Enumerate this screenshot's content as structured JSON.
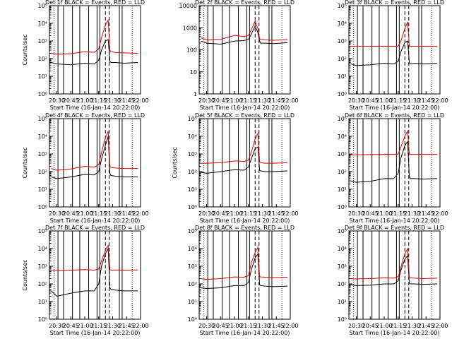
{
  "figure": {
    "background": "#ffffff",
    "colors": {
      "events": "#000000",
      "lld": "#dd0000",
      "axes": "#000000"
    }
  },
  "chart_data": [
    {
      "type": "line",
      "title": "Det 1f  BLACK = Events, RED = LLD",
      "xlabel": "Start Time (16-Jan-14 20:22:00)",
      "ylabel": "Counts/sec",
      "xticks": [
        "20:30",
        "20:45",
        "21:00",
        "21:15",
        "21:30",
        "21:45",
        "22:00"
      ],
      "yscale": "log",
      "ylim": [
        1,
        100000
      ],
      "yticklabels": [
        "10⁰",
        "10¹",
        "10²",
        "10³",
        "10⁴",
        "10⁵"
      ],
      "series": [
        {
          "color": "#000000",
          "x": [
            20.4,
            20.5,
            20.75,
            21.0,
            21.17,
            21.25,
            21.3,
            21.37,
            21.42,
            21.45,
            21.47,
            21.55,
            21.7,
            21.95
          ],
          "y": [
            60,
            50,
            45,
            55,
            50,
            80,
            300,
            1000,
            1200,
            70,
            60,
            60,
            55,
            60
          ]
        },
        {
          "color": "#dd0000",
          "x": [
            20.4,
            20.5,
            20.75,
            21.0,
            21.17,
            21.25,
            21.3,
            21.37,
            21.42,
            21.45,
            21.47,
            21.55,
            21.7,
            21.95
          ],
          "y": [
            200,
            180,
            190,
            250,
            230,
            350,
            1500,
            8000,
            15000,
            300,
            250,
            220,
            210,
            200
          ]
        }
      ]
    },
    {
      "type": "line",
      "title": "Det 2f  BLACK = Events, RED = LLD",
      "xlabel": "Start Time (16-Jan-14 20:22:00)",
      "ylabel": "",
      "xticks": [
        "20:30",
        "20:45",
        "21:00",
        "21:15",
        "21:30",
        "21:45",
        "22:00"
      ],
      "yscale": "log",
      "ylim": [
        1,
        10000
      ],
      "yticklabels": [
        "1",
        "10",
        "100",
        "1000",
        "10000"
      ],
      "series": [
        {
          "color": "#000000",
          "x": [
            20.4,
            20.5,
            20.75,
            21.0,
            21.17,
            21.25,
            21.3,
            21.37,
            21.42,
            21.45,
            21.47,
            21.55,
            21.7,
            21.95
          ],
          "y": [
            250,
            200,
            180,
            250,
            260,
            300,
            500,
            1200,
            600,
            250,
            200,
            200,
            190,
            210
          ]
        },
        {
          "color": "#dd0000",
          "x": [
            20.4,
            20.5,
            20.75,
            21.0,
            21.17,
            21.25,
            21.3,
            21.37,
            21.42,
            21.45,
            21.47,
            21.55,
            21.7,
            21.95
          ],
          "y": [
            350,
            280,
            300,
            450,
            400,
            450,
            800,
            2000,
            900,
            320,
            300,
            280,
            270,
            290
          ]
        }
      ]
    },
    {
      "type": "line",
      "title": "Det 3f  BLACK = Events, RED = LLD",
      "xlabel": "Start Time (16-Jan-14 20:22:00)",
      "ylabel": "",
      "xticks": [
        "20:30",
        "20:45",
        "21:00",
        "21:15",
        "21:30",
        "21:45",
        "22:00"
      ],
      "yscale": "log",
      "ylim": [
        1,
        100000
      ],
      "yticklabels": [
        "10⁰",
        "10¹",
        "10²",
        "10³",
        "10⁴",
        "10⁵"
      ],
      "series": [
        {
          "color": "#000000",
          "x": [
            20.4,
            20.5,
            20.75,
            21.0,
            21.17,
            21.25,
            21.3,
            21.37,
            21.42,
            21.45,
            21.47,
            21.55,
            21.7,
            21.95
          ],
          "y": [
            50,
            40,
            45,
            55,
            50,
            70,
            250,
            800,
            1000,
            60,
            50,
            55,
            50,
            55
          ]
        },
        {
          "color": "#dd0000",
          "x": [
            20.4,
            20.5,
            20.75,
            21.0,
            21.17,
            21.25,
            21.3,
            21.37,
            21.42,
            21.45,
            21.47,
            21.55,
            21.7,
            21.95
          ],
          "y": [
            500,
            500,
            500,
            500,
            500,
            520,
            1000,
            5000,
            12000,
            500,
            500,
            500,
            500,
            500
          ]
        }
      ]
    },
    {
      "type": "line",
      "title": "Det 4f  BLACK = Events, RED = LLD",
      "xlabel": "Start Time (16-Jan-14 20:22:00)",
      "ylabel": "Counts/sec",
      "xticks": [
        "20:30",
        "20:45",
        "21:00",
        "21:15",
        "21:30",
        "21:45",
        "22:00"
      ],
      "yscale": "log",
      "ylim": [
        1,
        100000
      ],
      "yticklabels": [
        "10⁰",
        "10¹",
        "10²",
        "10³",
        "10⁴",
        "10⁵"
      ],
      "series": [
        {
          "color": "#000000",
          "x": [
            20.4,
            20.5,
            20.75,
            21.0,
            21.17,
            21.25,
            21.3,
            21.37,
            21.42,
            21.45,
            21.47,
            21.55,
            21.7,
            21.95
          ],
          "y": [
            50,
            40,
            50,
            70,
            65,
            100,
            500,
            3000,
            10000,
            80,
            60,
            55,
            50,
            50
          ]
        },
        {
          "color": "#dd0000",
          "x": [
            20.4,
            20.5,
            20.75,
            21.0,
            21.17,
            21.25,
            21.3,
            21.37,
            21.42,
            21.45,
            21.47,
            21.55,
            21.7,
            21.95
          ],
          "y": [
            150,
            120,
            140,
            200,
            180,
            250,
            1200,
            8000,
            20000,
            200,
            170,
            160,
            150,
            150
          ]
        }
      ]
    },
    {
      "type": "line",
      "title": "Det 5f  BLACK = Events, RED = LLD",
      "xlabel": "Start Time (16-Jan-14 20:22:00)",
      "ylabel": "Counts/sec",
      "xticks": [
        "20:30",
        "20:45",
        "21:00",
        "21:15",
        "21:30",
        "21:45",
        "22:00"
      ],
      "yscale": "log",
      "ylim": [
        1,
        100000
      ],
      "yticklabels": [
        "10⁰",
        "10¹",
        "10²",
        "10³",
        "10⁴",
        "10⁵"
      ],
      "series": [
        {
          "color": "#000000",
          "x": [
            20.4,
            20.5,
            20.75,
            21.0,
            21.17,
            21.25,
            21.3,
            21.37,
            21.42,
            21.45,
            21.47,
            21.55,
            21.7,
            21.95
          ],
          "y": [
            90,
            80,
            100,
            130,
            120,
            180,
            500,
            2000,
            2500,
            120,
            110,
            100,
            100,
            110
          ]
        },
        {
          "color": "#dd0000",
          "x": [
            20.4,
            20.5,
            20.75,
            21.0,
            21.17,
            21.25,
            21.3,
            21.37,
            21.42,
            21.45,
            21.47,
            21.55,
            21.7,
            21.95
          ],
          "y": [
            300,
            300,
            320,
            400,
            380,
            450,
            1200,
            7000,
            15000,
            350,
            320,
            300,
            300,
            320
          ]
        }
      ]
    },
    {
      "type": "line",
      "title": "Det 6f  BLACK = Events, RED = LLD",
      "xlabel": "Start Time (16-Jan-14 20:22:00)",
      "ylabel": "",
      "xticks": [
        "20:30",
        "20:45",
        "21:00",
        "21:15",
        "21:30",
        "21:45",
        "22:00"
      ],
      "yscale": "log",
      "ylim": [
        1,
        100000
      ],
      "yticklabels": [
        "10⁰",
        "10¹",
        "10²",
        "10³",
        "10⁴",
        "10⁵"
      ],
      "series": [
        {
          "color": "#000000",
          "x": [
            20.4,
            20.5,
            20.75,
            21.0,
            21.17,
            21.25,
            21.3,
            21.37,
            21.42,
            21.45,
            21.47,
            21.55,
            21.7,
            21.95
          ],
          "y": [
            30,
            25,
            28,
            40,
            40,
            80,
            600,
            3000,
            5000,
            50,
            40,
            40,
            38,
            40
          ]
        },
        {
          "color": "#dd0000",
          "x": [
            20.4,
            20.5,
            20.75,
            21.0,
            21.17,
            21.25,
            21.3,
            21.37,
            21.42,
            21.45,
            21.47,
            21.55,
            21.7,
            21.95
          ],
          "y": [
            900,
            900,
            920,
            950,
            950,
            1000,
            2500,
            10000,
            20000,
            1000,
            950,
            950,
            950,
            950
          ]
        }
      ]
    },
    {
      "type": "line",
      "title": "Det 7f  BLACK = Events, RED = LLD",
      "xlabel": "Start Time (16-Jan-14 20:22:00)",
      "ylabel": "Counts/sec",
      "xticks": [
        "20:30",
        "20:45",
        "21:00",
        "21:15",
        "21:30",
        "21:45",
        "22:00"
      ],
      "yscale": "log",
      "ylim": [
        1,
        100000
      ],
      "yticklabels": [
        "10⁰",
        "10¹",
        "10²",
        "10³",
        "10⁴",
        "10⁵"
      ],
      "series": [
        {
          "color": "#000000",
          "x": [
            20.4,
            20.5,
            20.75,
            21.0,
            21.17,
            21.25,
            21.3,
            21.37,
            21.42,
            21.45,
            21.47,
            21.55,
            21.7,
            21.95
          ],
          "y": [
            40,
            20,
            30,
            40,
            40,
            100,
            1000,
            5000,
            10000,
            60,
            50,
            45,
            40,
            40
          ]
        },
        {
          "color": "#dd0000",
          "x": [
            20.4,
            20.5,
            20.75,
            21.0,
            21.17,
            21.25,
            21.3,
            21.37,
            21.42,
            21.45,
            21.47,
            21.55,
            21.7,
            21.95
          ],
          "y": [
            600,
            550,
            600,
            650,
            600,
            700,
            2000,
            8000,
            15000,
            650,
            600,
            620,
            600,
            620
          ]
        }
      ]
    },
    {
      "type": "line",
      "title": "Det 8f  BLACK = Events, RED = LLD",
      "xlabel": "Start Time (16-Jan-14 20:22:00)",
      "ylabel": "",
      "xticks": [
        "20:30",
        "20:45",
        "21:00",
        "21:15",
        "21:30",
        "21:45",
        "22:00"
      ],
      "yscale": "log",
      "ylim": [
        1,
        100000
      ],
      "yticklabels": [
        "10⁰",
        "10¹",
        "10²",
        "10³",
        "10⁴",
        "10⁵"
      ],
      "series": [
        {
          "color": "#000000",
          "x": [
            20.4,
            20.5,
            20.75,
            21.0,
            21.17,
            21.25,
            21.3,
            21.37,
            21.42,
            21.45,
            21.47,
            21.55,
            21.7,
            21.95
          ],
          "y": [
            60,
            55,
            60,
            80,
            80,
            120,
            600,
            3000,
            5000,
            90,
            80,
            75,
            70,
            75
          ]
        },
        {
          "color": "#dd0000",
          "x": [
            20.4,
            20.5,
            20.75,
            21.0,
            21.17,
            21.25,
            21.3,
            21.37,
            21.42,
            21.45,
            21.47,
            21.55,
            21.7,
            21.95
          ],
          "y": [
            200,
            180,
            200,
            250,
            240,
            300,
            1500,
            6000,
            12000,
            260,
            250,
            240,
            230,
            240
          ]
        }
      ]
    },
    {
      "type": "line",
      "title": "Det 9f  BLACK = Events, RED = LLD",
      "xlabel": "Start Time (16-Jan-14 20:22:00)",
      "ylabel": "",
      "xticks": [
        "20:30",
        "20:45",
        "21:00",
        "21:15",
        "21:30",
        "21:45",
        "22:00"
      ],
      "yscale": "log",
      "ylim": [
        1,
        100000
      ],
      "yticklabels": [
        "10⁰",
        "10¹",
        "10²",
        "10³",
        "10⁴",
        "10⁵"
      ],
      "series": [
        {
          "color": "#000000",
          "x": [
            20.4,
            20.5,
            20.75,
            21.0,
            21.17,
            21.25,
            21.3,
            21.37,
            21.42,
            21.45,
            21.47,
            21.55,
            21.7,
            21.95
          ],
          "y": [
            90,
            80,
            85,
            100,
            100,
            150,
            600,
            2500,
            4000,
            110,
            100,
            100,
            95,
            100
          ]
        },
        {
          "color": "#dd0000",
          "x": [
            20.4,
            20.5,
            20.75,
            21.0,
            21.17,
            21.25,
            21.3,
            21.37,
            21.42,
            21.45,
            21.47,
            21.55,
            21.7,
            21.95
          ],
          "y": [
            200,
            190,
            200,
            220,
            210,
            260,
            900,
            5000,
            10000,
            240,
            220,
            210,
            200,
            210
          ]
        }
      ]
    }
  ]
}
